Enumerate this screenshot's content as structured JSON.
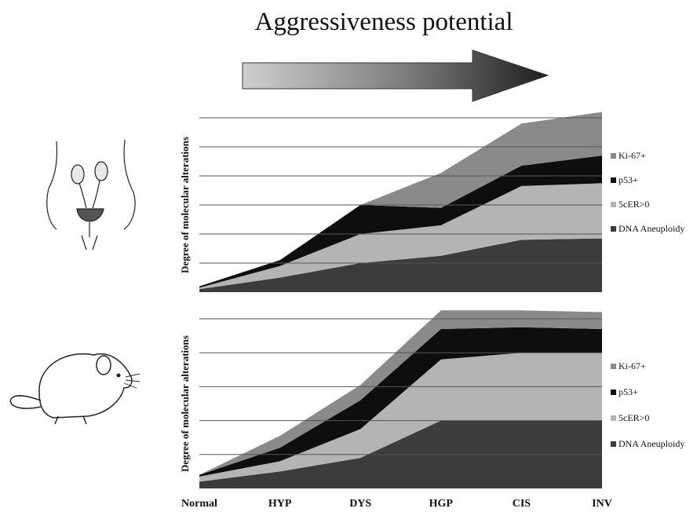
{
  "title": "Aggressiveness potential",
  "colors": {
    "dna_aneuploidy": "#3c3c3c",
    "scer": "#b4b4b4",
    "p53": "#0e0e0e",
    "ki67": "#8a8a8a",
    "gridline": "#555555"
  },
  "icons": [
    "urinary-system-icon",
    "mouse-icon",
    "progress-arrow-icon"
  ],
  "chart_data": [
    {
      "type": "area",
      "stacked": true,
      "title": "",
      "ylabel": "Degree of molecular alterations",
      "xlabel": "",
      "categories": [
        "Normal",
        "HYP",
        "DYS",
        "HGP",
        "CIS",
        "INV"
      ],
      "ylim": [
        0,
        6
      ],
      "grid": true,
      "legend_position": "right",
      "series": [
        {
          "name": "DNA Aneuploidy",
          "values": [
            0.1,
            0.5,
            1.0,
            1.25,
            1.8,
            1.85
          ]
        },
        {
          "name": "5cER>0",
          "values": [
            0.05,
            0.4,
            1.0,
            1.05,
            1.85,
            1.9
          ]
        },
        {
          "name": "p53+",
          "values": [
            0.05,
            0.2,
            1.0,
            0.6,
            0.7,
            0.95
          ]
        },
        {
          "name": "Ki-67+",
          "values": [
            0,
            0,
            0,
            1.2,
            1.45,
            1.5
          ]
        }
      ],
      "legend": [
        "Ki-67+",
        "p53+",
        "5cER>0",
        "DNA Aneuploidy"
      ]
    },
    {
      "type": "area",
      "stacked": true,
      "title": "",
      "ylabel": "Degree of molecular alterations",
      "xlabel": "",
      "categories": [
        "Normal",
        "HYP",
        "DYS",
        "HGP",
        "CIS",
        "INV"
      ],
      "ylim": [
        0,
        5
      ],
      "grid": true,
      "legend_position": "right",
      "series": [
        {
          "name": "DNA Aneuploidy",
          "values": [
            0.2,
            0.5,
            0.9,
            2.0,
            2.0,
            2.0
          ]
        },
        {
          "name": "5cER>0",
          "values": [
            0.15,
            0.3,
            0.85,
            1.8,
            2.0,
            2.0
          ]
        },
        {
          "name": "p53+",
          "values": [
            0.05,
            0.4,
            0.85,
            0.9,
            0.75,
            0.7
          ]
        },
        {
          "name": "Ki-67+",
          "values": [
            0,
            0.35,
            0.45,
            0.55,
            0.5,
            0.5
          ]
        }
      ],
      "legend": [
        "Ki-67+",
        "p53+",
        "5cER>0",
        "DNA Aneuploidy"
      ]
    }
  ]
}
